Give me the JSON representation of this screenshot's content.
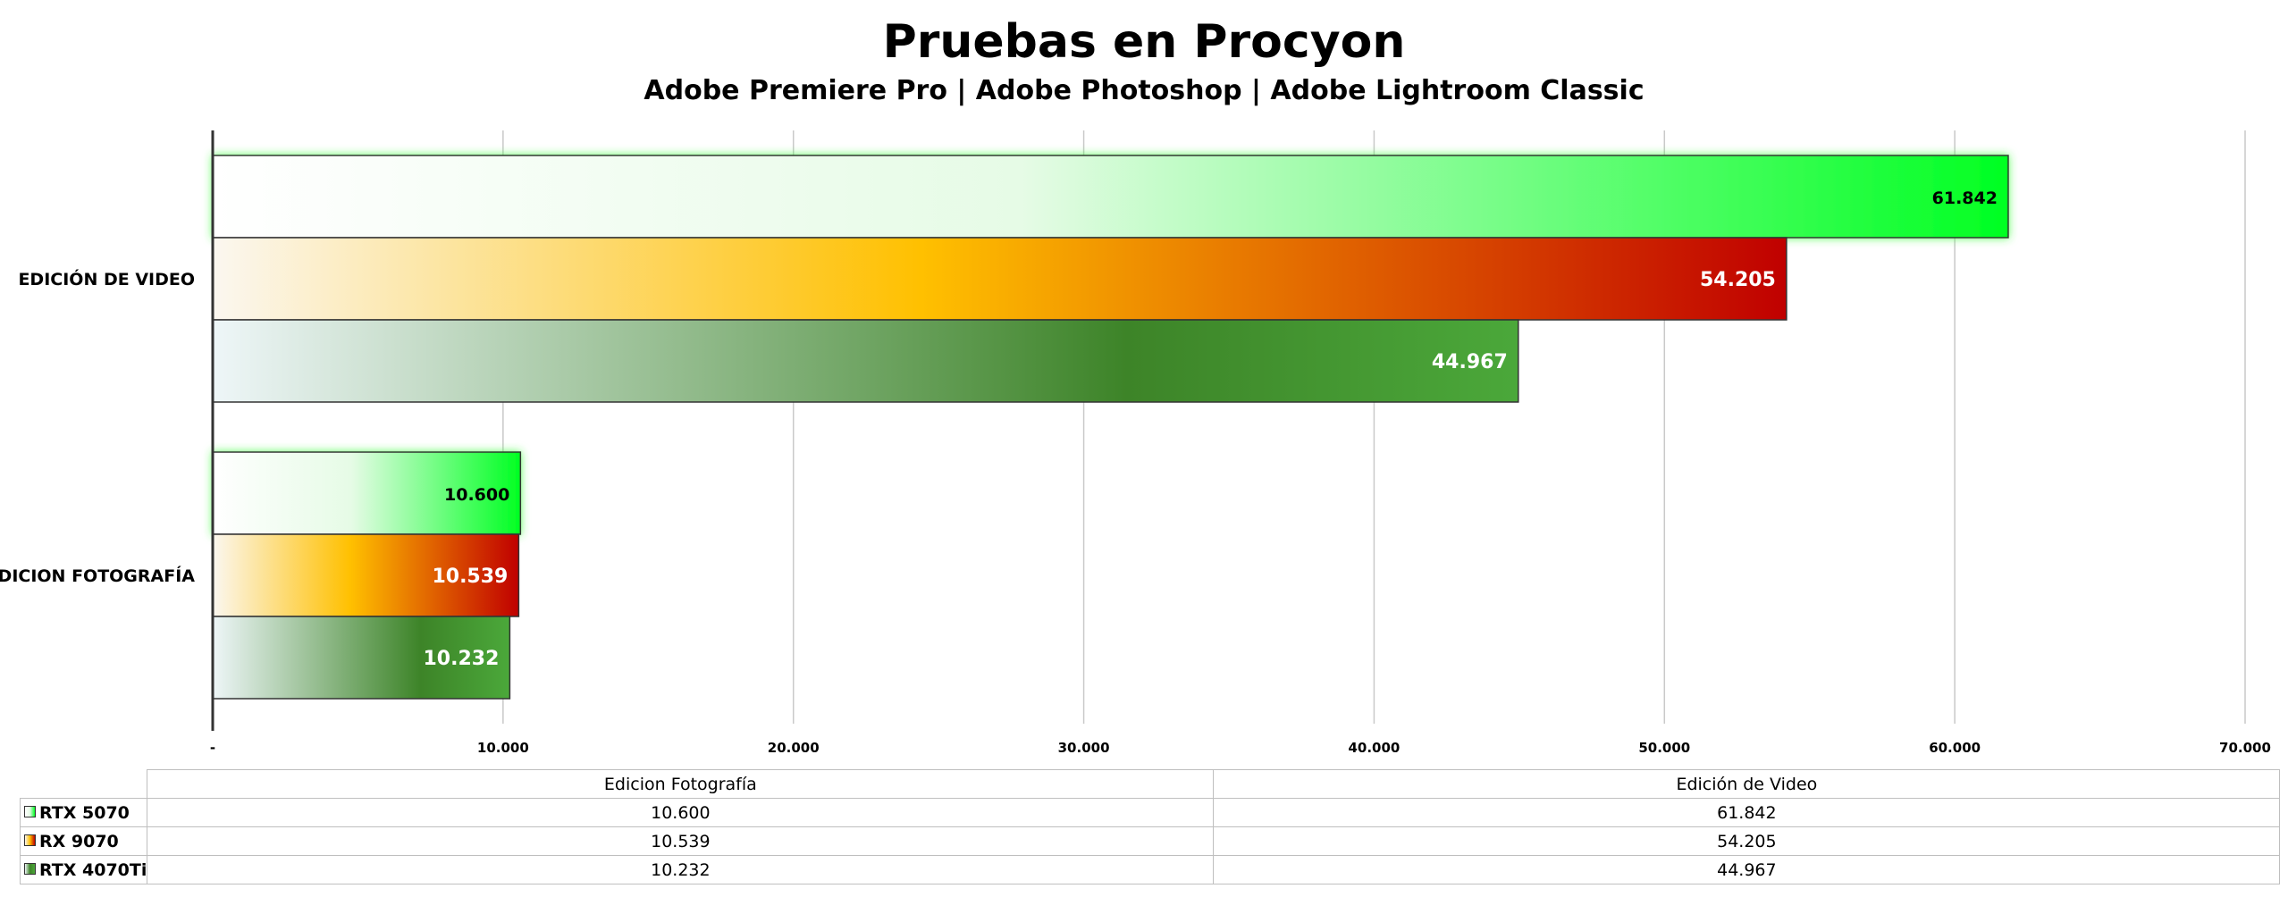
{
  "chart_data": {
    "type": "bar",
    "orientation": "horizontal",
    "title": "Pruebas en Procyon",
    "subtitle": "Adobe Premiere Pro | Adobe Photoshop | Adobe Lightroom Classic",
    "categories": [
      "EDICIÓN DE VIDEO",
      "EDICION FOTOGRAFÍA"
    ],
    "table_categories": [
      "Edicion Fotografía",
      "Edición de Video"
    ],
    "series": [
      {
        "name": "RTX 5070",
        "values": [
          61842,
          10600
        ],
        "labels": [
          "61.842",
          "10.600"
        ],
        "table_values": [
          "10.600",
          "61.842"
        ],
        "color": "#00ff22",
        "gradient": [
          "#ffffff",
          "#e6fbe6",
          "#00ff22"
        ],
        "label_color": "#000000"
      },
      {
        "name": "RX 9070",
        "values": [
          54205,
          10539
        ],
        "labels": [
          "54.205",
          "10.539"
        ],
        "table_values": [
          "10.539",
          "54.205"
        ],
        "color": "#c00000",
        "gradient": [
          "#fbf7f0",
          "#ffc000",
          "#c00000"
        ],
        "label_color": "#ffffff"
      },
      {
        "name": "RTX 4070Ti",
        "values": [
          44967,
          10232
        ],
        "labels": [
          "44.967",
          "10.232"
        ],
        "table_values": [
          "10.232",
          "44.967"
        ],
        "color": "#3a8a2a",
        "gradient": [
          "#eef6f8",
          "#3d8428",
          "#4ba83a"
        ],
        "label_color": "#ffffff"
      }
    ],
    "xlim": [
      0,
      70000
    ],
    "x_ticks": [
      {
        "value": 0,
        "label": "-"
      },
      {
        "value": 10000,
        "label": "10.000"
      },
      {
        "value": 20000,
        "label": "20.000"
      },
      {
        "value": 30000,
        "label": "30.000"
      },
      {
        "value": 40000,
        "label": "40.000"
      },
      {
        "value": 50000,
        "label": "50.000"
      },
      {
        "value": 60000,
        "label": "60.000"
      },
      {
        "value": 70000,
        "label": "70.000"
      }
    ],
    "grid": true,
    "legend": "data table below chart"
  }
}
